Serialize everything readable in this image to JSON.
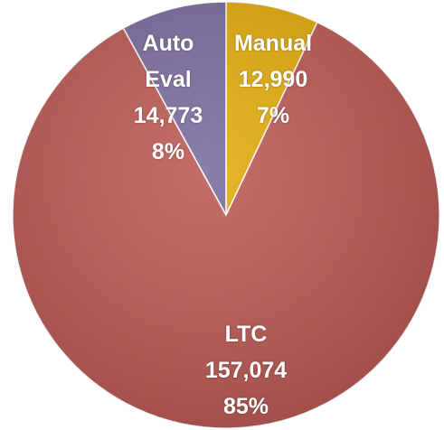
{
  "chart_data": {
    "type": "pie",
    "categories": [
      "Manual",
      "LTC",
      "Auto Eval"
    ],
    "values": [
      12990,
      157074,
      14773
    ],
    "value_labels": [
      "12,990",
      "157,074",
      "14,773"
    ],
    "percentages": [
      7,
      85,
      8
    ],
    "percentage_labels": [
      "7%",
      "85%",
      "8%"
    ],
    "colors": [
      "#e3ac0c",
      "#bc5a55",
      "#7a6d9e"
    ]
  }
}
